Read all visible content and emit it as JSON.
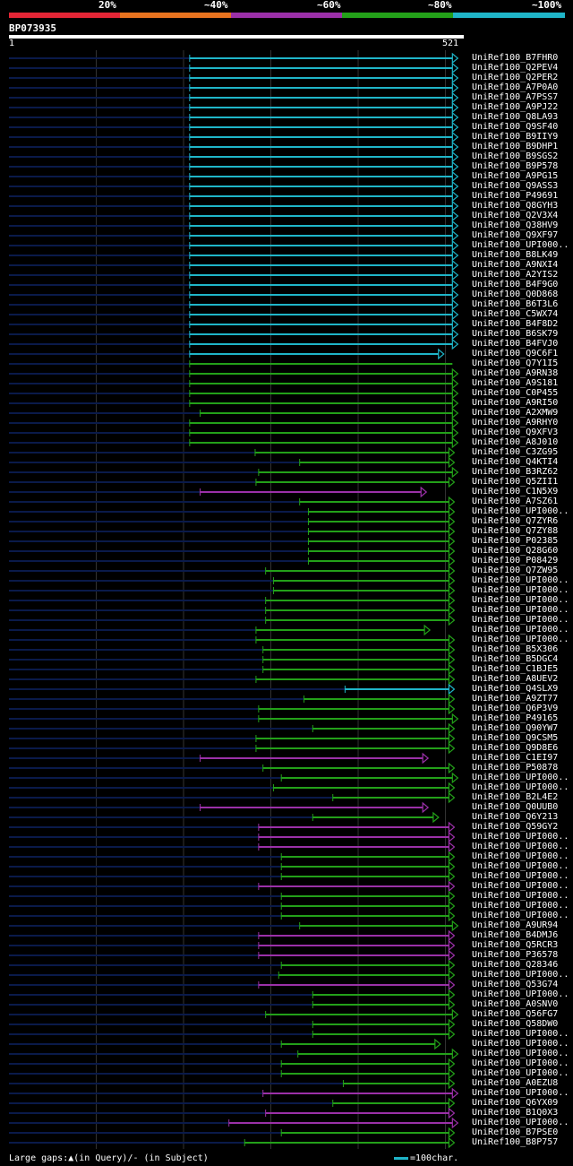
{
  "colors": {
    "c20": "#e32636",
    "c40": "#e8731f",
    "c60": "#9b30a8",
    "c80": "#23a019",
    "c100": "#1fb5c8",
    "bg": "#000000",
    "track": "#0a1a4a",
    "grid": "#333333"
  },
  "scale": {
    "labels": [
      "20%",
      "~40%",
      "~60%",
      "~80%",
      "~100%"
    ]
  },
  "query": {
    "name": "BP073935",
    "start": "1",
    "end": "521",
    "length": 521
  },
  "footer": {
    "left_text": "Large gaps:▲(in Query)/- (in Subject)",
    "right_text": "=100char."
  },
  "hits": [
    {
      "name": "UniRef100_B7FHR0",
      "s": 207,
      "e": 508,
      "c": "c100",
      "arrow": true
    },
    {
      "name": "UniRef100_Q2PEV4",
      "s": 207,
      "e": 508,
      "c": "c100",
      "arrow": true
    },
    {
      "name": "UniRef100_Q2PER2",
      "s": 207,
      "e": 508,
      "c": "c100",
      "arrow": true
    },
    {
      "name": "UniRef100_A7P0A0",
      "s": 207,
      "e": 508,
      "c": "c100",
      "arrow": true
    },
    {
      "name": "UniRef100_A7PSS7",
      "s": 207,
      "e": 508,
      "c": "c100",
      "arrow": true
    },
    {
      "name": "UniRef100_A9PJ22",
      "s": 207,
      "e": 508,
      "c": "c100",
      "arrow": true
    },
    {
      "name": "UniRef100_Q8LA93",
      "s": 207,
      "e": 508,
      "c": "c100",
      "arrow": true
    },
    {
      "name": "UniRef100_Q9SF40",
      "s": 207,
      "e": 508,
      "c": "c100",
      "arrow": true
    },
    {
      "name": "UniRef100_B9IIY9",
      "s": 207,
      "e": 508,
      "c": "c100",
      "arrow": true
    },
    {
      "name": "UniRef100_B9DHP1",
      "s": 207,
      "e": 508,
      "c": "c100",
      "arrow": true
    },
    {
      "name": "UniRef100_B9SGS2",
      "s": 207,
      "e": 508,
      "c": "c100",
      "arrow": true
    },
    {
      "name": "UniRef100_B9P578",
      "s": 207,
      "e": 508,
      "c": "c100",
      "arrow": true
    },
    {
      "name": "UniRef100_A9PG15",
      "s": 207,
      "e": 508,
      "c": "c100",
      "arrow": true
    },
    {
      "name": "UniRef100_Q9ASS3",
      "s": 207,
      "e": 508,
      "c": "c100",
      "arrow": true
    },
    {
      "name": "UniRef100_P49691",
      "s": 207,
      "e": 508,
      "c": "c100",
      "arrow": true
    },
    {
      "name": "UniRef100_Q8GYH3",
      "s": 207,
      "e": 508,
      "c": "c100",
      "arrow": true
    },
    {
      "name": "UniRef100_Q2V3X4",
      "s": 207,
      "e": 508,
      "c": "c100",
      "arrow": true
    },
    {
      "name": "UniRef100_Q38HV9",
      "s": 207,
      "e": 508,
      "c": "c100",
      "arrow": true
    },
    {
      "name": "UniRef100_Q9XF97",
      "s": 207,
      "e": 508,
      "c": "c100",
      "arrow": true
    },
    {
      "name": "UniRef100_UPI000..",
      "s": 207,
      "e": 508,
      "c": "c100",
      "arrow": true
    },
    {
      "name": "UniRef100_B8LK49",
      "s": 207,
      "e": 508,
      "c": "c100",
      "arrow": true
    },
    {
      "name": "UniRef100_A9NXI4",
      "s": 207,
      "e": 508,
      "c": "c100",
      "arrow": true
    },
    {
      "name": "UniRef100_A2YIS2",
      "s": 207,
      "e": 508,
      "c": "c100",
      "arrow": true
    },
    {
      "name": "UniRef100_B4F9G0",
      "s": 207,
      "e": 508,
      "c": "c100",
      "arrow": true
    },
    {
      "name": "UniRef100_Q0D868",
      "s": 207,
      "e": 508,
      "c": "c100",
      "arrow": true
    },
    {
      "name": "UniRef100_B6T3L6",
      "s": 207,
      "e": 508,
      "c": "c100",
      "arrow": true
    },
    {
      "name": "UniRef100_C5WX74",
      "s": 207,
      "e": 508,
      "c": "c100",
      "arrow": true
    },
    {
      "name": "UniRef100_B4F8D2",
      "s": 207,
      "e": 508,
      "c": "c100",
      "arrow": true
    },
    {
      "name": "UniRef100_B6SK79",
      "s": 207,
      "e": 508,
      "c": "c100",
      "arrow": true
    },
    {
      "name": "UniRef100_B4FVJ0",
      "s": 207,
      "e": 508,
      "c": "c100",
      "arrow": true
    },
    {
      "name": "UniRef100_Q9C6F1",
      "s": 207,
      "e": 492,
      "c": "c100",
      "arrow": true
    },
    {
      "name": "UniRef100_Q7Y1I5",
      "s": 207,
      "e": 508,
      "c": "c80",
      "arrow": false
    },
    {
      "name": "UniRef100_A9RN38",
      "s": 207,
      "e": 508,
      "c": "c80",
      "arrow": true
    },
    {
      "name": "UniRef100_A9S181",
      "s": 207,
      "e": 508,
      "c": "c80",
      "arrow": true
    },
    {
      "name": "UniRef100_C0P455",
      "s": 207,
      "e": 508,
      "c": "c80",
      "arrow": true
    },
    {
      "name": "UniRef100_A9RI50",
      "s": 207,
      "e": 508,
      "c": "c80",
      "arrow": true
    },
    {
      "name": "UniRef100_A2XMW9",
      "s": 219,
      "e": 508,
      "c": "c80",
      "arrow": true
    },
    {
      "name": "UniRef100_A9RHY0",
      "s": 207,
      "e": 508,
      "c": "c80",
      "arrow": true
    },
    {
      "name": "UniRef100_Q9XFV3",
      "s": 207,
      "e": 508,
      "c": "c80",
      "arrow": true
    },
    {
      "name": "UniRef100_A8J010",
      "s": 207,
      "e": 508,
      "c": "c80",
      "arrow": true
    },
    {
      "name": "UniRef100_C3ZG95",
      "s": 282,
      "e": 504,
      "c": "c80",
      "arrow": true
    },
    {
      "name": "UniRef100_Q4KTI4",
      "s": 333,
      "e": 504,
      "c": "c80",
      "arrow": true
    },
    {
      "name": "UniRef100_B3RZ62",
      "s": 286,
      "e": 508,
      "c": "c80",
      "arrow": true
    },
    {
      "name": "UniRef100_Q5ZII1",
      "s": 283,
      "e": 504,
      "c": "c80",
      "arrow": true
    },
    {
      "name": "UniRef100_C1N5X9",
      "s": 219,
      "e": 472,
      "c": "c60",
      "arrow": true
    },
    {
      "name": "UniRef100_A7SZ61",
      "s": 333,
      "e": 504,
      "c": "c80",
      "arrow": true
    },
    {
      "name": "UniRef100_UPI000..",
      "s": 343,
      "e": 504,
      "c": "c80",
      "arrow": true
    },
    {
      "name": "UniRef100_Q7ZYR6",
      "s": 343,
      "e": 504,
      "c": "c80",
      "arrow": true
    },
    {
      "name": "UniRef100_Q7ZY88",
      "s": 343,
      "e": 504,
      "c": "c80",
      "arrow": true
    },
    {
      "name": "UniRef100_P02385",
      "s": 343,
      "e": 504,
      "c": "c80",
      "arrow": true
    },
    {
      "name": "UniRef100_Q28G60",
      "s": 343,
      "e": 504,
      "c": "c80",
      "arrow": true
    },
    {
      "name": "UniRef100_P08429",
      "s": 343,
      "e": 504,
      "c": "c80",
      "arrow": true
    },
    {
      "name": "UniRef100_Q7ZW95",
      "s": 294,
      "e": 504,
      "c": "c80",
      "arrow": true
    },
    {
      "name": "UniRef100_UPI000..",
      "s": 303,
      "e": 504,
      "c": "c80",
      "arrow": true
    },
    {
      "name": "UniRef100_UPI000..",
      "s": 303,
      "e": 504,
      "c": "c80",
      "arrow": true
    },
    {
      "name": "UniRef100_UPI000..",
      "s": 294,
      "e": 504,
      "c": "c80",
      "arrow": true
    },
    {
      "name": "UniRef100_UPI000..",
      "s": 294,
      "e": 504,
      "c": "c80",
      "arrow": true
    },
    {
      "name": "UniRef100_UPI000..",
      "s": 294,
      "e": 504,
      "c": "c80",
      "arrow": true
    },
    {
      "name": "UniRef100_UPI000..",
      "s": 283,
      "e": 476,
      "c": "c80",
      "arrow": true
    },
    {
      "name": "UniRef100_UPI000..",
      "s": 283,
      "e": 504,
      "c": "c80",
      "arrow": true
    },
    {
      "name": "UniRef100_B5X306",
      "s": 291,
      "e": 504,
      "c": "c80",
      "arrow": true
    },
    {
      "name": "UniRef100_B5DGC4",
      "s": 291,
      "e": 504,
      "c": "c80",
      "arrow": true
    },
    {
      "name": "UniRef100_C1BJE5",
      "s": 291,
      "e": 504,
      "c": "c80",
      "arrow": true
    },
    {
      "name": "UniRef100_A8UEV2",
      "s": 283,
      "e": 504,
      "c": "c80",
      "arrow": true
    },
    {
      "name": "UniRef100_Q4SLX9",
      "s": 385,
      "e": 504,
      "c": "c100",
      "arrow": true
    },
    {
      "name": "UniRef100_A9ZT77",
      "s": 338,
      "e": 504,
      "c": "c80",
      "arrow": true
    },
    {
      "name": "UniRef100_Q6P3V9",
      "s": 286,
      "e": 504,
      "c": "c80",
      "arrow": true
    },
    {
      "name": "UniRef100_P49165",
      "s": 286,
      "e": 508,
      "c": "c80",
      "arrow": true
    },
    {
      "name": "UniRef100_Q90YW7",
      "s": 348,
      "e": 504,
      "c": "c80",
      "arrow": true
    },
    {
      "name": "UniRef100_Q9CSM5",
      "s": 283,
      "e": 504,
      "c": "c80",
      "arrow": true
    },
    {
      "name": "UniRef100_Q9D8E6",
      "s": 283,
      "e": 504,
      "c": "c80",
      "arrow": true
    },
    {
      "name": "UniRef100_C1EI97",
      "s": 219,
      "e": 474,
      "c": "c60",
      "arrow": true
    },
    {
      "name": "UniRef100_P50878",
      "s": 291,
      "e": 504,
      "c": "c80",
      "arrow": true
    },
    {
      "name": "UniRef100_UPI000..",
      "s": 312,
      "e": 508,
      "c": "c80",
      "arrow": true
    },
    {
      "name": "UniRef100_UPI000..",
      "s": 303,
      "e": 504,
      "c": "c80",
      "arrow": true
    },
    {
      "name": "UniRef100_B2L4E2",
      "s": 371,
      "e": 504,
      "c": "c80",
      "arrow": true
    },
    {
      "name": "UniRef100_Q0UUB0",
      "s": 219,
      "e": 474,
      "c": "c60",
      "arrow": true
    },
    {
      "name": "UniRef100_Q6Y213",
      "s": 348,
      "e": 486,
      "c": "c80",
      "arrow": true
    },
    {
      "name": "UniRef100_Q59GY2",
      "s": 286,
      "e": 504,
      "c": "c60",
      "arrow": true
    },
    {
      "name": "UniRef100_UPI000..",
      "s": 286,
      "e": 504,
      "c": "c60",
      "arrow": true
    },
    {
      "name": "UniRef100_UPI000..",
      "s": 286,
      "e": 504,
      "c": "c60",
      "arrow": true
    },
    {
      "name": "UniRef100_UPI000..",
      "s": 312,
      "e": 504,
      "c": "c80",
      "arrow": true
    },
    {
      "name": "UniRef100_UPI000..",
      "s": 312,
      "e": 504,
      "c": "c80",
      "arrow": true
    },
    {
      "name": "UniRef100_UPI000..",
      "s": 312,
      "e": 504,
      "c": "c80",
      "arrow": true
    },
    {
      "name": "UniRef100_UPI000..",
      "s": 286,
      "e": 504,
      "c": "c60",
      "arrow": true
    },
    {
      "name": "UniRef100_UPI000..",
      "s": 312,
      "e": 504,
      "c": "c80",
      "arrow": true
    },
    {
      "name": "UniRef100_UPI000..",
      "s": 312,
      "e": 504,
      "c": "c80",
      "arrow": true
    },
    {
      "name": "UniRef100_UPI000..",
      "s": 312,
      "e": 504,
      "c": "c80",
      "arrow": true
    },
    {
      "name": "UniRef100_A9UR94",
      "s": 333,
      "e": 508,
      "c": "c80",
      "arrow": true
    },
    {
      "name": "UniRef100_B4DMJ6",
      "s": 286,
      "e": 504,
      "c": "c60",
      "arrow": true
    },
    {
      "name": "UniRef100_Q5RCR3",
      "s": 286,
      "e": 504,
      "c": "c60",
      "arrow": true
    },
    {
      "name": "UniRef100_P36578",
      "s": 286,
      "e": 504,
      "c": "c60",
      "arrow": true
    },
    {
      "name": "UniRef100_Q28346",
      "s": 312,
      "e": 504,
      "c": "c80",
      "arrow": true
    },
    {
      "name": "UniRef100_UPI000..",
      "s": 309,
      "e": 504,
      "c": "c80",
      "arrow": true
    },
    {
      "name": "UniRef100_Q53G74",
      "s": 286,
      "e": 504,
      "c": "c60",
      "arrow": true
    },
    {
      "name": "UniRef100_UPI000..",
      "s": 348,
      "e": 504,
      "c": "c80",
      "arrow": true
    },
    {
      "name": "UniRef100_A0SNV0",
      "s": 348,
      "e": 504,
      "c": "c80",
      "arrow": true
    },
    {
      "name": "UniRef100_Q56FG7",
      "s": 294,
      "e": 508,
      "c": "c80",
      "arrow": true
    },
    {
      "name": "UniRef100_Q58DW0",
      "s": 348,
      "e": 504,
      "c": "c80",
      "arrow": true
    },
    {
      "name": "UniRef100_UPI000..",
      "s": 348,
      "e": 504,
      "c": "c80",
      "arrow": true
    },
    {
      "name": "UniRef100_UPI000..",
      "s": 312,
      "e": 488,
      "c": "c80",
      "arrow": true
    },
    {
      "name": "UniRef100_UPI000..",
      "s": 331,
      "e": 508,
      "c": "c80",
      "arrow": true
    },
    {
      "name": "UniRef100_UPI000..",
      "s": 312,
      "e": 504,
      "c": "c80",
      "arrow": true
    },
    {
      "name": "UniRef100_UPI000..",
      "s": 312,
      "e": 504,
      "c": "c80",
      "arrow": true
    },
    {
      "name": "UniRef100_A0EZU8",
      "s": 383,
      "e": 504,
      "c": "c80",
      "arrow": true
    },
    {
      "name": "UniRef100_UPI000..",
      "s": 291,
      "e": 508,
      "c": "c60",
      "arrow": true
    },
    {
      "name": "UniRef100_Q6YX09",
      "s": 371,
      "e": 504,
      "c": "c80",
      "arrow": true
    },
    {
      "name": "UniRef100_B1Q0X3",
      "s": 294,
      "e": 504,
      "c": "c60",
      "arrow": true
    },
    {
      "name": "UniRef100_UPI000..",
      "s": 252,
      "e": 508,
      "c": "c60",
      "arrow": true
    },
    {
      "name": "UniRef100_B7PSE0",
      "s": 312,
      "e": 504,
      "c": "c80",
      "arrow": true
    },
    {
      "name": "UniRef100_B8P757",
      "s": 270,
      "e": 504,
      "c": "c80",
      "arrow": true
    }
  ]
}
